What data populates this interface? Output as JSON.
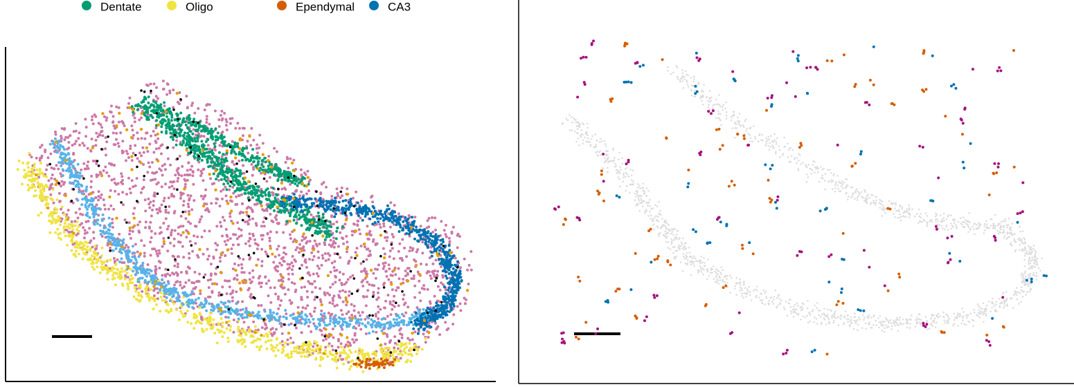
{
  "legend": {
    "items": [
      {
        "label": "Dentate",
        "color": "#009E73"
      },
      {
        "label": "Oligo",
        "color": "#F0E442"
      },
      {
        "label": "Ependymal",
        "color": "#D55E00"
      },
      {
        "label": "CA3",
        "color": "#0072B2"
      }
    ]
  }
}
